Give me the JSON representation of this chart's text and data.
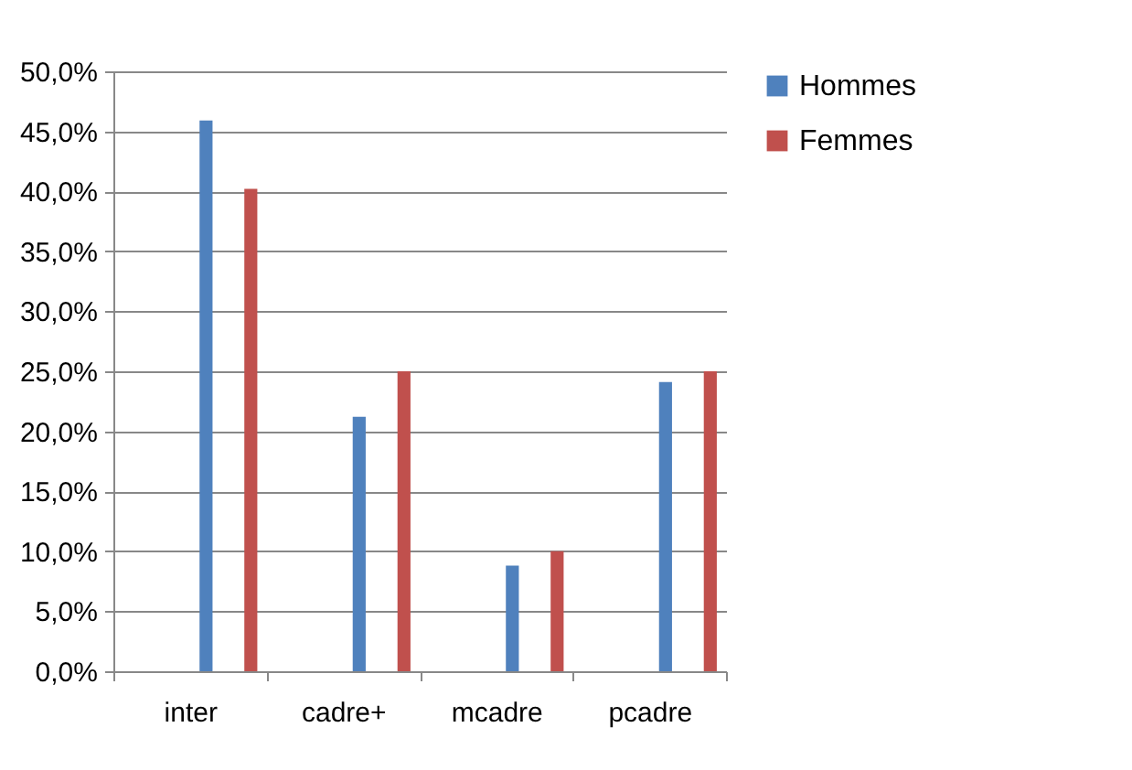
{
  "chart_data": {
    "type": "bar",
    "categories": [
      "inter",
      "cadre+",
      "mcadre",
      "pcadre"
    ],
    "series": [
      {
        "name": "Hommes",
        "color": "#4f81bd",
        "values": [
          45.9,
          21.2,
          8.8,
          24.1
        ]
      },
      {
        "name": "Femmes",
        "color": "#c0504d",
        "values": [
          40.2,
          25.0,
          10.0,
          25.0
        ]
      }
    ],
    "ylim": [
      0,
      50
    ],
    "yticks": [
      {
        "value": 0,
        "label": "0,0%"
      },
      {
        "value": 5,
        "label": "5,0%"
      },
      {
        "value": 10,
        "label": "10,0%"
      },
      {
        "value": 15,
        "label": "15,0%"
      },
      {
        "value": 20,
        "label": "20,0%"
      },
      {
        "value": 25,
        "label": "25,0%"
      },
      {
        "value": 30,
        "label": "30,0%"
      },
      {
        "value": 35,
        "label": "35,0%"
      },
      {
        "value": 40,
        "label": "40,0%"
      },
      {
        "value": 45,
        "label": "45,0%"
      },
      {
        "value": 50,
        "label": "50,0%"
      }
    ],
    "grid": "y",
    "legend": "right"
  }
}
